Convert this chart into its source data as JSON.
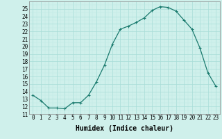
{
  "x": [
    0,
    1,
    2,
    3,
    4,
    5,
    6,
    7,
    8,
    9,
    10,
    11,
    12,
    13,
    14,
    15,
    16,
    17,
    18,
    19,
    20,
    21,
    22,
    23
  ],
  "y": [
    13.5,
    12.8,
    11.8,
    11.8,
    11.7,
    12.5,
    12.5,
    13.5,
    15.3,
    17.5,
    20.3,
    22.3,
    22.7,
    23.2,
    23.8,
    24.8,
    25.3,
    25.2,
    24.7,
    23.5,
    22.3,
    19.8,
    16.5,
    14.7
  ],
  "line_color": "#1a7a6e",
  "marker": "+",
  "marker_size": 3,
  "linewidth": 0.9,
  "bg_color": "#cff0eb",
  "grid_major_color": "#a8ddd7",
  "grid_minor_color": "#c0eae5",
  "xlabel": "Humidex (Indice chaleur)",
  "xlabel_fontsize": 7,
  "tick_fontsize": 5.5,
  "ylim": [
    11,
    26
  ],
  "xlim": [
    -0.5,
    23.5
  ],
  "yticks": [
    11,
    12,
    13,
    14,
    15,
    16,
    17,
    18,
    19,
    20,
    21,
    22,
    23,
    24,
    25
  ],
  "xticks": [
    0,
    1,
    2,
    3,
    4,
    5,
    6,
    7,
    8,
    9,
    10,
    11,
    12,
    13,
    14,
    15,
    16,
    17,
    18,
    19,
    20,
    21,
    22,
    23
  ]
}
